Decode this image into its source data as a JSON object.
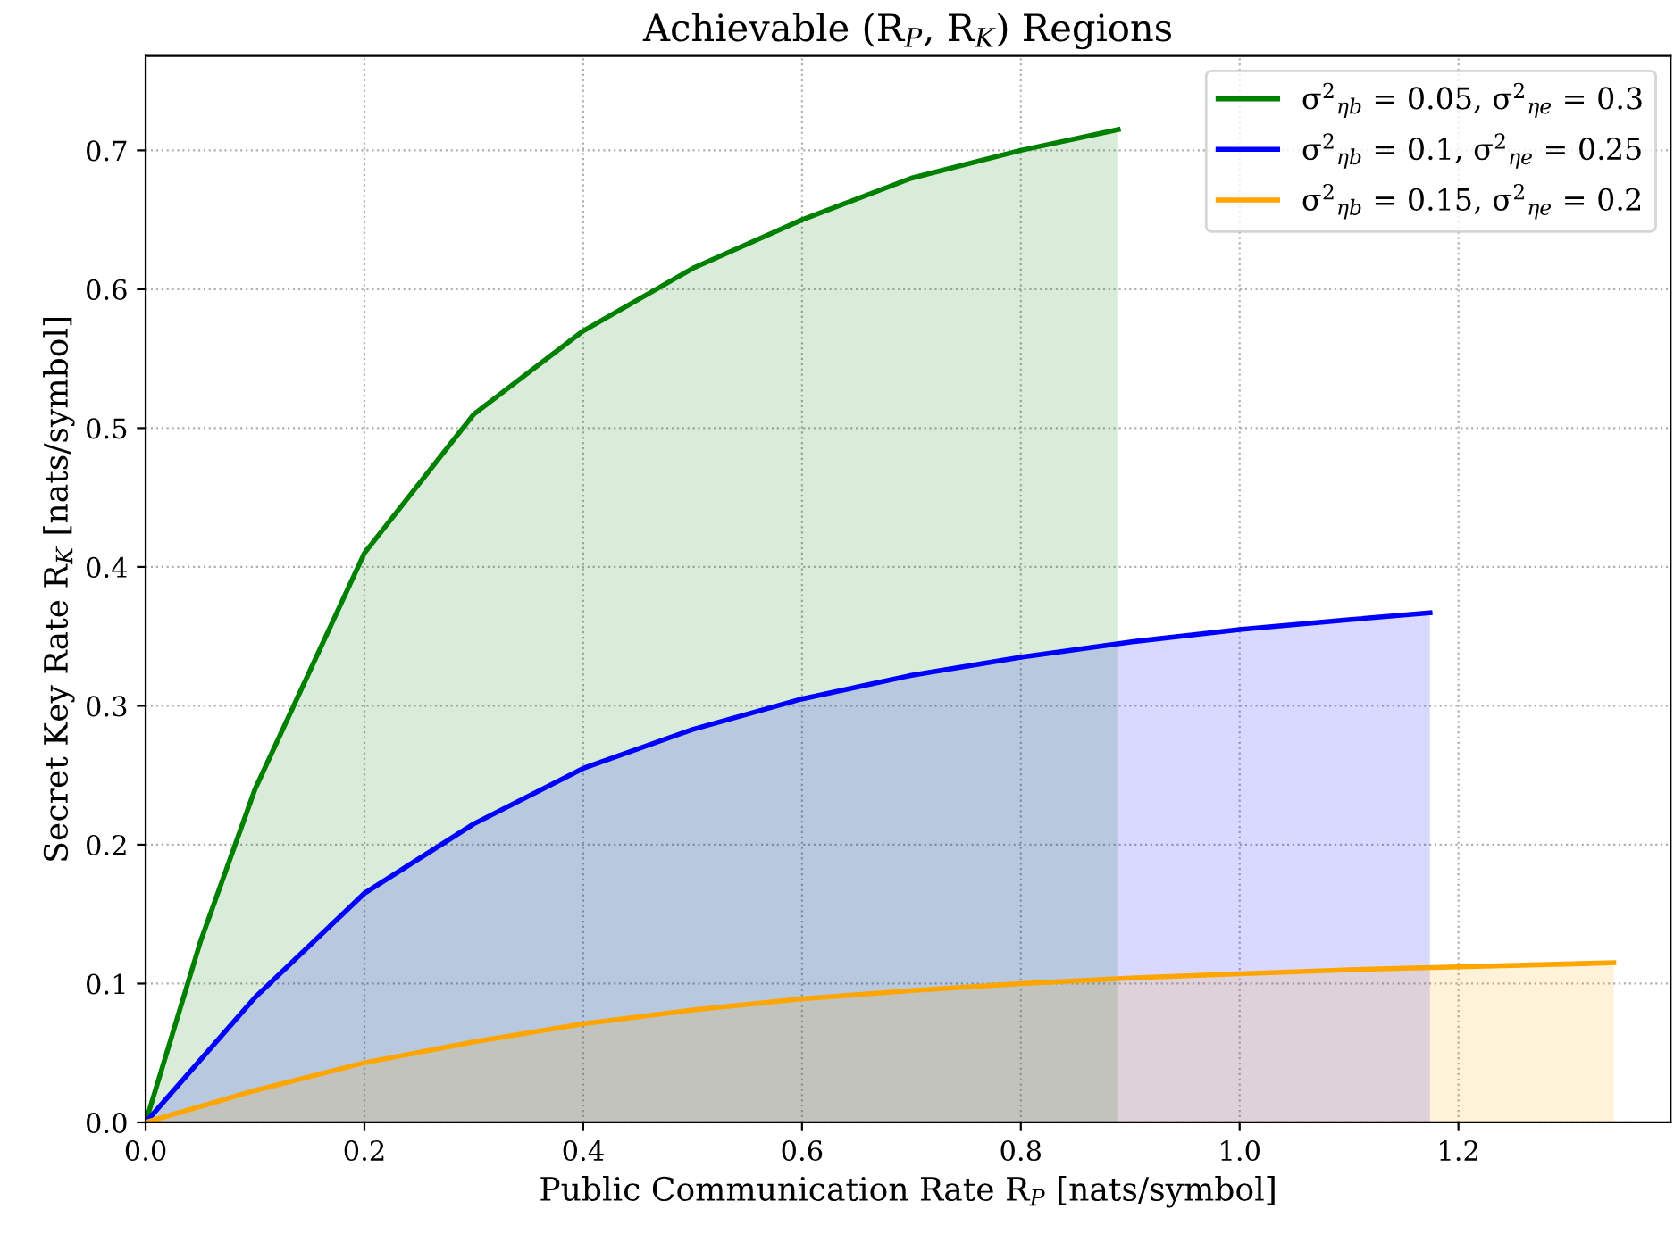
{
  "chart_data": {
    "type": "area",
    "title": "Achievable (R$_{P}$, R$_{K}$) Regions",
    "xlabel": "Public Communication Rate R$_{P}$ [nats/symbol]",
    "ylabel": "Secret Key Rate R$_{K}$ [nats/symbol]",
    "series": [
      {
        "name": "σ$^{2}$$_{ηb}$ = 0.05, σ$^{2}$$_{ηe}$ = 0.3",
        "color": "#008000",
        "x": [
          0,
          0.05,
          0.1,
          0.2,
          0.3,
          0.4,
          0.5,
          0.6,
          0.7,
          0.8,
          0.889
        ],
        "values": [
          0,
          0.13,
          0.24,
          0.41,
          0.51,
          0.57,
          0.615,
          0.65,
          0.68,
          0.7,
          0.715
        ]
      },
      {
        "name": "σ$^{2}$$_{ηb}$ = 0.1, σ$^{2}$$_{ηe}$ = 0.25",
        "color": "#0000ff",
        "x": [
          0,
          0.1,
          0.2,
          0.3,
          0.4,
          0.5,
          0.6,
          0.7,
          0.8,
          0.9,
          1.0,
          1.1,
          1.174
        ],
        "values": [
          0,
          0.09,
          0.165,
          0.215,
          0.255,
          0.283,
          0.305,
          0.322,
          0.335,
          0.346,
          0.355,
          0.362,
          0.367
        ]
      },
      {
        "name": "σ$^{2}$$_{ηb}$ = 0.15, σ$^{2}$$_{ηe}$ = 0.2",
        "color": "#ffa500",
        "x": [
          0,
          0.1,
          0.2,
          0.3,
          0.4,
          0.5,
          0.6,
          0.7,
          0.8,
          0.9,
          1.0,
          1.1,
          1.2,
          1.342
        ],
        "values": [
          0,
          0.023,
          0.043,
          0.058,
          0.071,
          0.081,
          0.089,
          0.095,
          0.1,
          0.104,
          0.107,
          0.11,
          0.112,
          0.115
        ]
      }
    ],
    "xlim": [
      0,
      1.394
    ],
    "ylim": [
      0,
      0.768
    ],
    "xticks": [
      {
        "value": 0,
        "label": "0.0"
      },
      {
        "value": 0.2,
        "label": "0.2"
      },
      {
        "value": 0.4,
        "label": "0.4"
      },
      {
        "value": 0.6,
        "label": "0.6"
      },
      {
        "value": 0.8,
        "label": "0.8"
      },
      {
        "value": 1.0,
        "label": "1.0"
      },
      {
        "value": 1.2,
        "label": "1.2"
      }
    ],
    "yticks": [
      {
        "value": 0,
        "label": "0.0"
      },
      {
        "value": 0.1,
        "label": "0.1"
      },
      {
        "value": 0.2,
        "label": "0.2"
      },
      {
        "value": 0.3,
        "label": "0.3"
      },
      {
        "value": 0.4,
        "label": "0.4"
      },
      {
        "value": 0.5,
        "label": "0.5"
      },
      {
        "value": 0.6,
        "label": "0.6"
      },
      {
        "value": 0.7,
        "label": "0.7"
      }
    ],
    "grid": true,
    "legend": "top right",
    "line_style": "solid"
  }
}
